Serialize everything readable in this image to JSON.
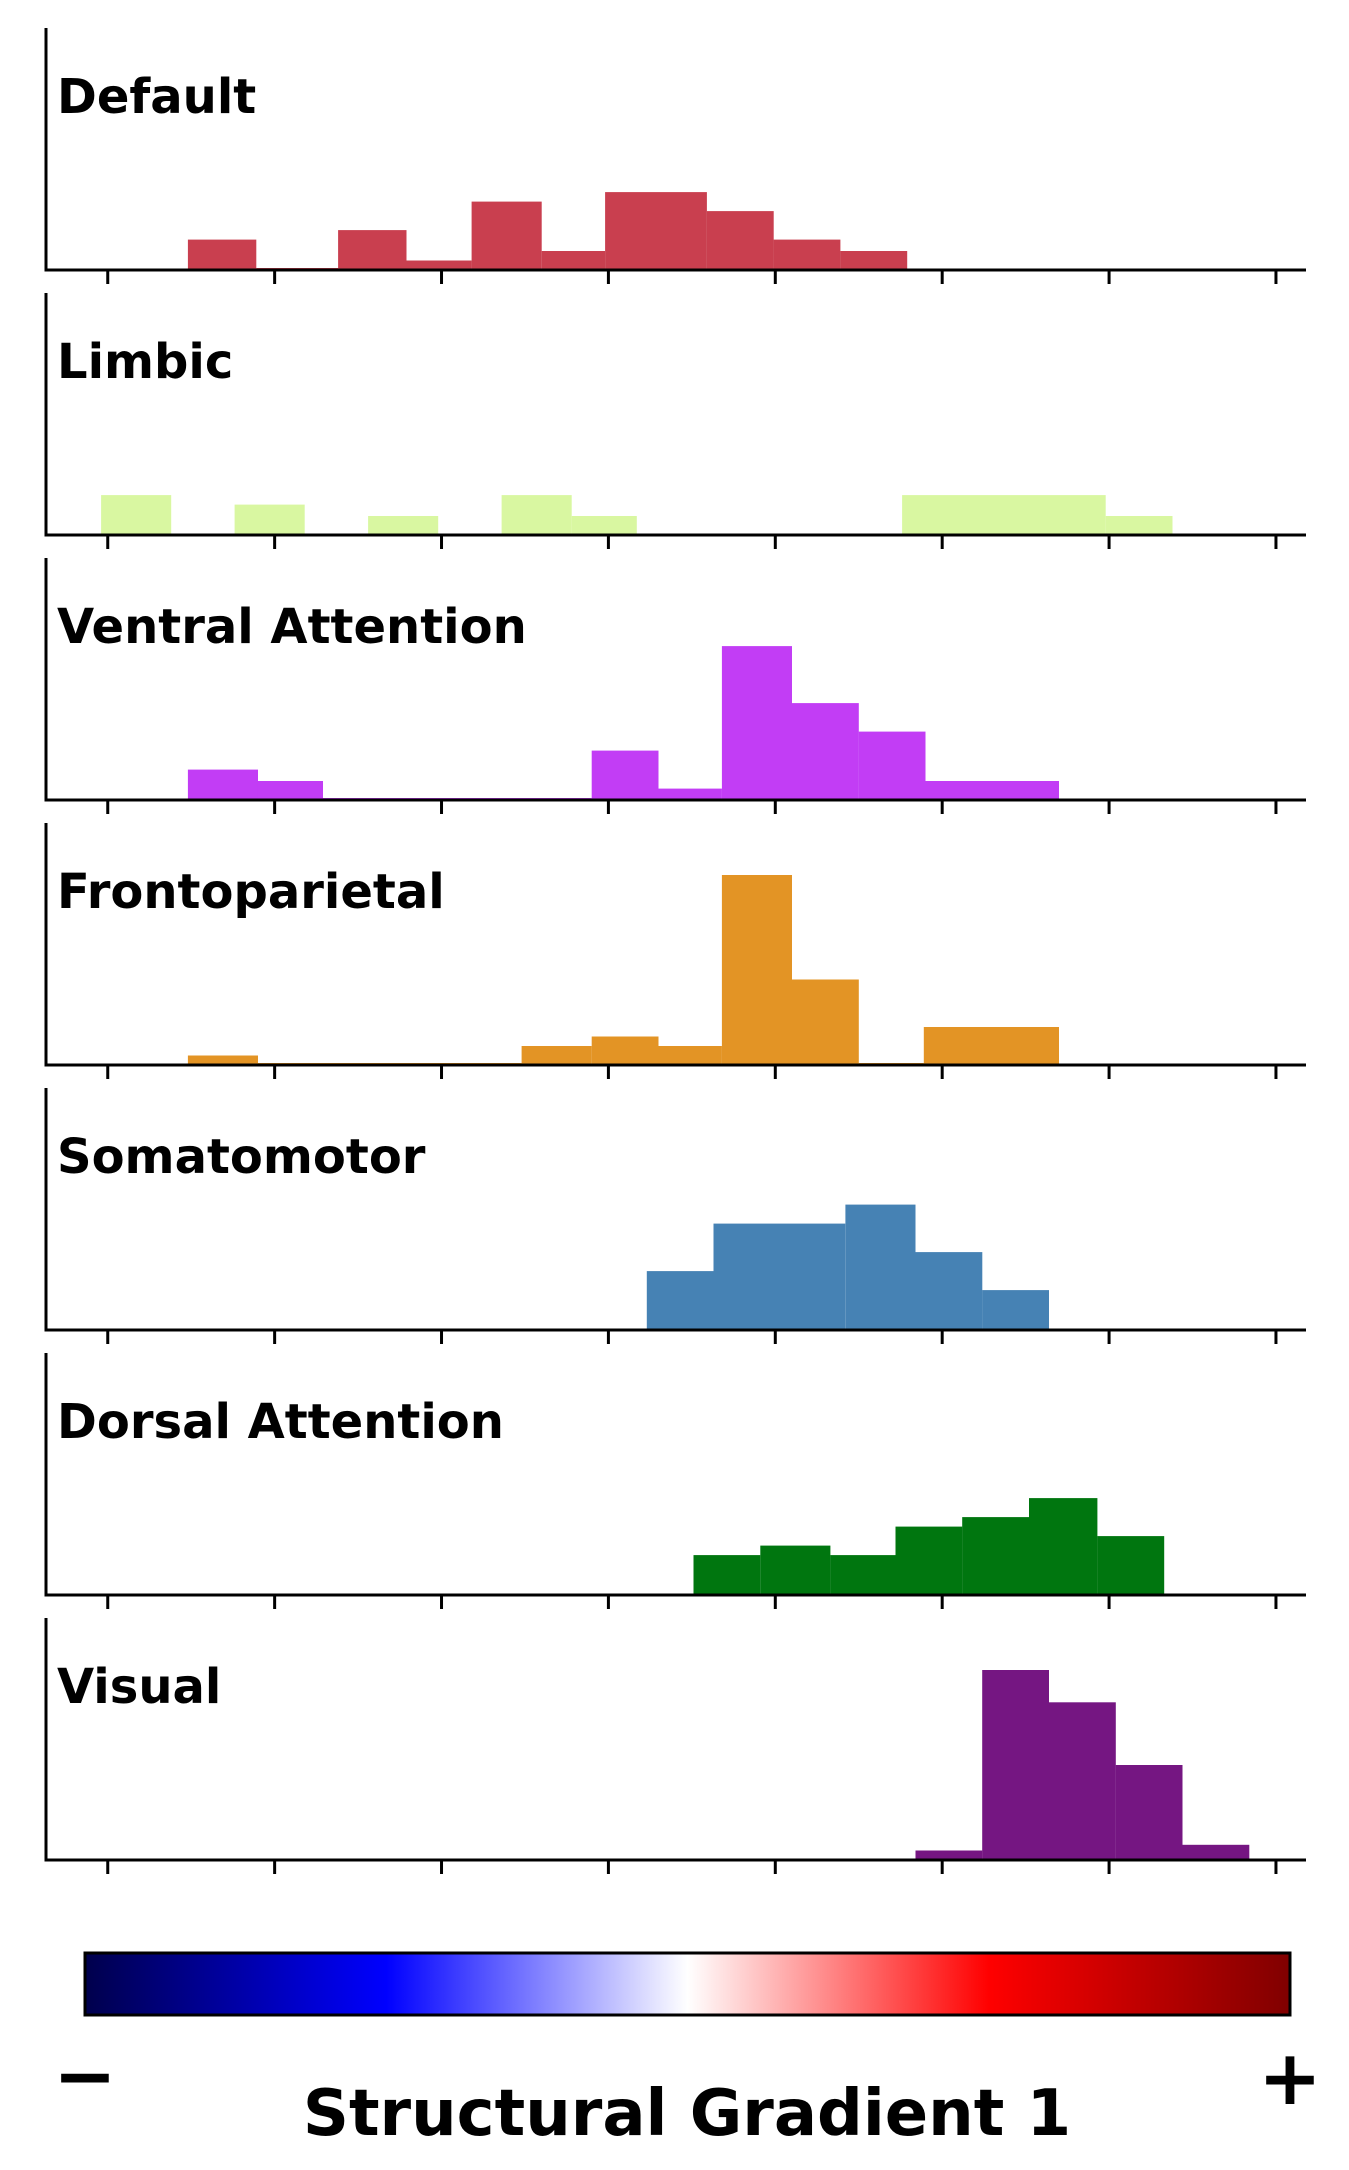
{
  "chart_data": {
    "type": "bar",
    "subtype": "stacked-histograms",
    "xlabel": "Structural Gradient 1",
    "colorbar": {
      "min_label": "−",
      "max_label": "+",
      "colormap": "seismic",
      "stops": [
        "#00004c",
        "#0000ff",
        "#ffffff",
        "#ff0000",
        "#800000"
      ]
    },
    "panels": [
      {
        "name": "Default",
        "color": "#c93f4f",
        "bins": [
          {
            "x0": 0.48,
            "x1": 0.89,
            "v": 0.16
          },
          {
            "x0": 0.89,
            "x1": 1.38,
            "v": 0.01
          },
          {
            "x0": 1.38,
            "x1": 1.79,
            "v": 0.21
          },
          {
            "x0": 1.79,
            "x1": 2.18,
            "v": 0.05
          },
          {
            "x0": 2.18,
            "x1": 2.6,
            "v": 0.36
          },
          {
            "x0": 2.6,
            "x1": 2.98,
            "v": 0.1
          },
          {
            "x0": 2.98,
            "x1": 3.59,
            "v": 0.41
          },
          {
            "x0": 3.59,
            "x1": 3.99,
            "v": 0.31
          },
          {
            "x0": 3.99,
            "x1": 4.39,
            "v": 0.16
          },
          {
            "x0": 4.39,
            "x1": 4.79,
            "v": 0.1
          }
        ]
      },
      {
        "name": "Limbic",
        "color": "#d9f7a1",
        "bins": [
          {
            "x0": -0.04,
            "x1": 0.38,
            "v": 0.21
          },
          {
            "x0": 0.76,
            "x1": 1.18,
            "v": 0.16
          },
          {
            "x0": 1.56,
            "x1": 1.98,
            "v": 0.1
          },
          {
            "x0": 2.36,
            "x1": 2.78,
            "v": 0.21
          },
          {
            "x0": 2.78,
            "x1": 3.17,
            "v": 0.1
          },
          {
            "x0": 4.76,
            "x1": 5.98,
            "v": 0.21
          },
          {
            "x0": 5.98,
            "x1": 6.38,
            "v": 0.1
          }
        ]
      },
      {
        "name": "Ventral Attention",
        "color": "#c23df5",
        "bins": [
          {
            "x0": 0.48,
            "x1": 0.9,
            "v": 0.16
          },
          {
            "x0": 0.9,
            "x1": 1.29,
            "v": 0.1
          },
          {
            "x0": 1.29,
            "x1": 2.9,
            "v": 0.01
          },
          {
            "x0": 2.9,
            "x1": 3.3,
            "v": 0.26
          },
          {
            "x0": 3.3,
            "x1": 3.68,
            "v": 0.06
          },
          {
            "x0": 3.68,
            "x1": 4.1,
            "v": 0.81
          },
          {
            "x0": 4.1,
            "x1": 4.5,
            "v": 0.51
          },
          {
            "x0": 4.5,
            "x1": 4.9,
            "v": 0.36
          },
          {
            "x0": 4.9,
            "x1": 5.7,
            "v": 0.1
          }
        ]
      },
      {
        "name": "Frontoparietal",
        "color": "#e39425",
        "bins": [
          {
            "x0": 0.48,
            "x1": 0.9,
            "v": 0.05
          },
          {
            "x0": 0.9,
            "x1": 2.48,
            "v": 0.01
          },
          {
            "x0": 2.48,
            "x1": 2.9,
            "v": 0.1
          },
          {
            "x0": 2.9,
            "x1": 3.3,
            "v": 0.15
          },
          {
            "x0": 3.3,
            "x1": 3.68,
            "v": 0.1
          },
          {
            "x0": 3.68,
            "x1": 4.1,
            "v": 1.0
          },
          {
            "x0": 4.1,
            "x1": 4.5,
            "v": 0.45
          },
          {
            "x0": 4.5,
            "x1": 4.89,
            "v": 0.01
          },
          {
            "x0": 4.89,
            "x1": 5.7,
            "v": 0.2
          }
        ]
      },
      {
        "name": "Somatomotor",
        "color": "#4682b4",
        "bins": [
          {
            "x0": 3.23,
            "x1": 3.63,
            "v": 0.31
          },
          {
            "x0": 3.63,
            "x1": 4.42,
            "v": 0.56
          },
          {
            "x0": 4.42,
            "x1": 4.84,
            "v": 0.66
          },
          {
            "x0": 4.84,
            "x1": 5.24,
            "v": 0.41
          },
          {
            "x0": 5.24,
            "x1": 5.64,
            "v": 0.21
          }
        ]
      },
      {
        "name": "Dorsal Attention",
        "color": "#00760f",
        "bins": [
          {
            "x0": 3.51,
            "x1": 3.91,
            "v": 0.21
          },
          {
            "x0": 3.91,
            "x1": 4.33,
            "v": 0.26
          },
          {
            "x0": 4.33,
            "x1": 4.72,
            "v": 0.21
          },
          {
            "x0": 4.72,
            "x1": 5.12,
            "v": 0.36
          },
          {
            "x0": 5.12,
            "x1": 5.52,
            "v": 0.41
          },
          {
            "x0": 5.52,
            "x1": 5.93,
            "v": 0.51
          },
          {
            "x0": 5.93,
            "x1": 6.33,
            "v": 0.31
          }
        ]
      },
      {
        "name": "Visual",
        "color": "#751682",
        "bins": [
          {
            "x0": 4.84,
            "x1": 5.24,
            "v": 0.05
          },
          {
            "x0": 5.24,
            "x1": 5.64,
            "v": 1.0
          },
          {
            "x0": 5.64,
            "x1": 6.04,
            "v": 0.83
          },
          {
            "x0": 6.04,
            "x1": 6.44,
            "v": 0.5
          },
          {
            "x0": 6.44,
            "x1": 6.84,
            "v": 0.08
          }
        ]
      }
    ],
    "xlim": [
      -0.37,
      7.18
    ],
    "xticks": [
      0,
      1,
      2,
      3,
      4,
      5,
      6,
      7
    ],
    "tick_labels_shown": false,
    "grid": false
  }
}
